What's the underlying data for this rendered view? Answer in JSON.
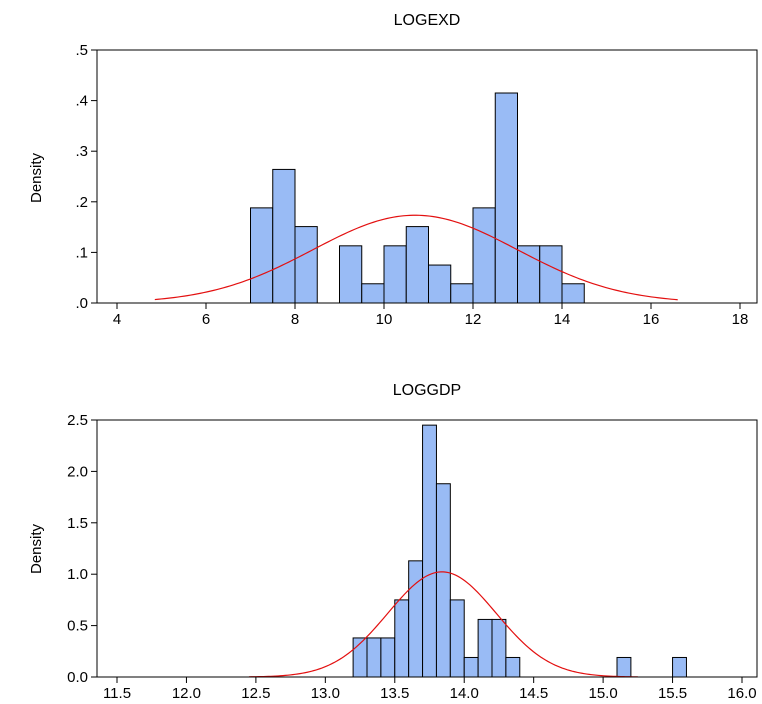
{
  "colors": {
    "bar_fill": "#99bbf5",
    "bar_stroke": "#000000",
    "curve": "#e31010",
    "frame": "#000000"
  },
  "chart_data": [
    {
      "type": "bar",
      "title": "LOGEXD",
      "xlabel": "",
      "ylabel": "Density",
      "xlim": [
        4,
        18
      ],
      "ylim": [
        0,
        0.5
      ],
      "xticks": [
        4,
        6,
        8,
        10,
        12,
        14,
        16,
        18
      ],
      "xtick_labels": [
        "4",
        "6",
        "8",
        "10",
        "12",
        "14",
        "16",
        "18"
      ],
      "yticks": [
        0,
        0.1,
        0.2,
        0.3,
        0.4,
        0.5
      ],
      "ytick_labels": [
        ".0",
        ".1",
        ".2",
        ".3",
        ".4",
        ".5"
      ],
      "bin_width": 0.5,
      "bins": [
        {
          "start": 7.0,
          "density": 0.188
        },
        {
          "start": 7.5,
          "density": 0.264
        },
        {
          "start": 8.0,
          "density": 0.151
        },
        {
          "start": 9.0,
          "density": 0.113
        },
        {
          "start": 9.5,
          "density": 0.038
        },
        {
          "start": 10.0,
          "density": 0.113
        },
        {
          "start": 10.5,
          "density": 0.151
        },
        {
          "start": 11.0,
          "density": 0.075
        },
        {
          "start": 11.5,
          "density": 0.038
        },
        {
          "start": 12.0,
          "density": 0.188
        },
        {
          "start": 12.5,
          "density": 0.415
        },
        {
          "start": 13.0,
          "density": 0.113
        },
        {
          "start": 13.5,
          "density": 0.113
        },
        {
          "start": 14.0,
          "density": 0.038
        }
      ],
      "normal_curve": {
        "mean": 10.7,
        "sd": 2.3,
        "x_range": [
          4.85,
          16.6
        ]
      }
    },
    {
      "type": "bar",
      "title": "LOGGDP",
      "xlabel": "",
      "ylabel": "Density",
      "xlim": [
        11.5,
        16.0
      ],
      "ylim": [
        0,
        2.5
      ],
      "xticks": [
        11.5,
        12.0,
        12.5,
        13.0,
        13.5,
        14.0,
        14.5,
        15.0,
        15.5,
        16.0
      ],
      "xtick_labels": [
        "11.5",
        "12.0",
        "12.5",
        "13.0",
        "13.5",
        "14.0",
        "14.5",
        "15.0",
        "15.5",
        "16.0"
      ],
      "yticks": [
        0,
        0.5,
        1.0,
        1.5,
        2.0,
        2.5
      ],
      "ytick_labels": [
        "0.0",
        "0.5",
        "1.0",
        "1.5",
        "2.0",
        "2.5"
      ],
      "bin_width": 0.1,
      "bins": [
        {
          "start": 13.2,
          "density": 0.38
        },
        {
          "start": 13.3,
          "density": 0.38
        },
        {
          "start": 13.4,
          "density": 0.38
        },
        {
          "start": 13.5,
          "density": 0.75
        },
        {
          "start": 13.6,
          "density": 1.13
        },
        {
          "start": 13.7,
          "density": 2.45
        },
        {
          "start": 13.8,
          "density": 1.88
        },
        {
          "start": 13.9,
          "density": 0.75
        },
        {
          "start": 14.0,
          "density": 0.19
        },
        {
          "start": 14.1,
          "density": 0.56
        },
        {
          "start": 14.2,
          "density": 0.56
        },
        {
          "start": 14.3,
          "density": 0.19
        },
        {
          "start": 15.1,
          "density": 0.19
        },
        {
          "start": 15.5,
          "density": 0.19
        }
      ],
      "normal_curve": {
        "mean": 13.84,
        "sd": 0.39,
        "x_range": [
          12.45,
          15.25
        ]
      }
    }
  ]
}
